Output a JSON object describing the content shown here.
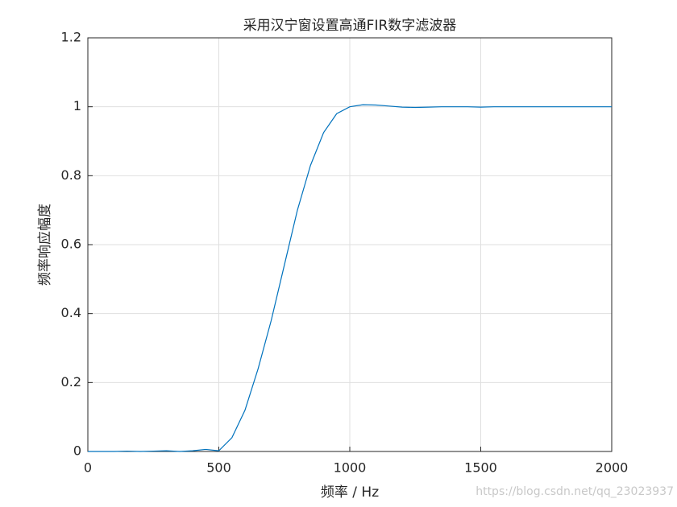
{
  "chart_data": {
    "type": "line",
    "title": "采用汉宁窗设置高通FIR数字滤波器",
    "x_label": "频率 / Hz",
    "y_label": "频率响应幅度",
    "x": [
      0,
      50,
      100,
      150,
      200,
      250,
      300,
      350,
      400,
      450,
      500,
      550,
      600,
      650,
      700,
      750,
      800,
      850,
      900,
      950,
      1000,
      1050,
      1100,
      1150,
      1200,
      1250,
      1300,
      1350,
      1400,
      1450,
      1500,
      1550,
      1600,
      1650,
      1700,
      1750,
      1800,
      1850,
      1900,
      1950,
      2000
    ],
    "series": [
      {
        "name": "频率响应",
        "color": "#0072bd",
        "values": [
          0,
          0,
          0,
          0.001,
          0,
          0.001,
          0.002,
          0,
          0.002,
          0.006,
          0.002,
          0.04,
          0.12,
          0.24,
          0.38,
          0.54,
          0.7,
          0.83,
          0.925,
          0.98,
          1.0,
          1.006,
          1.005,
          1.002,
          0.999,
          0.998,
          0.999,
          1.0,
          1.0,
          1.0,
          0.999,
          1.0,
          1.0,
          1.0,
          1.0,
          1.0,
          1.0,
          1.0,
          1.0,
          1.0,
          1.0
        ]
      }
    ],
    "xlim": [
      0,
      2000
    ],
    "ylim": [
      0,
      1.2
    ],
    "xticks": [
      0,
      500,
      1000,
      1500,
      2000
    ],
    "yticks": [
      0,
      0.2,
      0.4,
      0.6,
      0.8,
      1,
      1.2
    ],
    "grid": true,
    "watermark": "https://blog.csdn.net/qq_23023937"
  }
}
